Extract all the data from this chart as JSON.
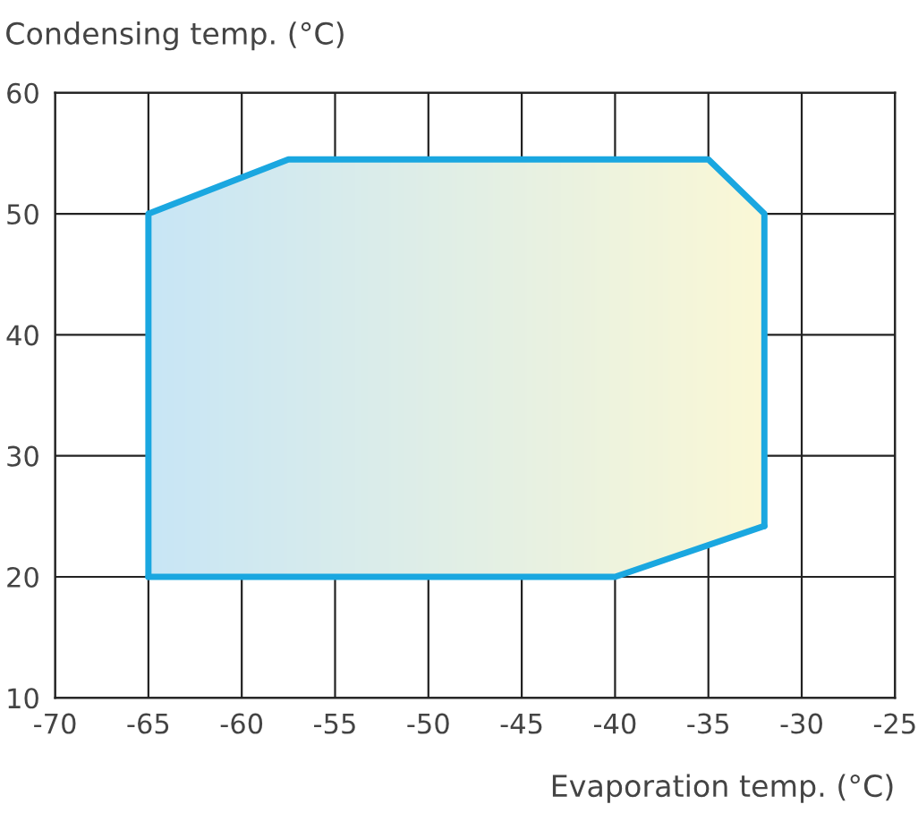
{
  "chart_data": {
    "type": "line",
    "xlabel": "Evaporation temp. (°C)",
    "ylabel": "Condensing temp. (°C)",
    "series": [
      {
        "color": "#1aa7e0",
        "x": [
          -65,
          -65,
          -57.5,
          -35,
          -32,
          -32
        ],
        "values": [
          20,
          50,
          54.5,
          54.5,
          50,
          24.2
        ]
      },
      {
        "color": "#1aa7e0",
        "x": [
          -65,
          -40,
          -32
        ],
        "values": [
          20,
          20,
          24.2
        ]
      }
    ],
    "xlim": [
      -70,
      -25
    ],
    "xticks": [
      -70,
      -65,
      -60,
      -55,
      -50,
      -45,
      -40,
      -35,
      -30,
      -25
    ],
    "ylim": [
      10,
      60
    ],
    "yticks": [
      10,
      20,
      30,
      40,
      50,
      60
    ],
    "grid": true,
    "marker": "none",
    "line_style": "solid"
  }
}
